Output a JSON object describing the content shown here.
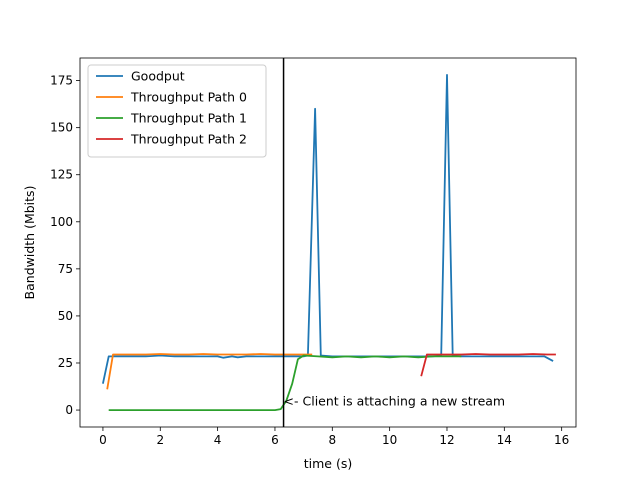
{
  "chart_data": {
    "type": "line",
    "title": "",
    "xlabel": "time (s)",
    "ylabel": "Bandwidth (Mbits)",
    "xlim": [
      -0.8,
      16.5
    ],
    "ylim": [
      -9,
      187
    ],
    "xticks": [
      0,
      2,
      4,
      6,
      8,
      10,
      12,
      14,
      16
    ],
    "yticks": [
      0,
      25,
      50,
      75,
      100,
      125,
      150,
      175
    ],
    "grid": false,
    "legend_position": "upper-left",
    "vline": {
      "x": 6.3
    },
    "annotation": {
      "text": "<- Client is attaching a new stream",
      "x": 6.3,
      "y": 4.5
    },
    "series": [
      {
        "name": "Goodput",
        "color": "#1f77b4",
        "x": [
          0,
          0.2,
          0.5,
          1.0,
          1.5,
          2.0,
          2.5,
          3.0,
          3.5,
          4.0,
          4.2,
          4.5,
          4.7,
          5.0,
          5.5,
          6.0,
          6.5,
          7.0,
          7.15,
          7.4,
          7.6,
          8.0,
          8.5,
          9.0,
          9.5,
          10.0,
          10.5,
          11.0,
          11.5,
          11.8,
          12.0,
          12.2,
          12.5,
          13.0,
          13.5,
          14.0,
          14.5,
          15.0,
          15.4,
          15.7
        ],
        "y": [
          14,
          28.5,
          28.5,
          28.5,
          28.5,
          29,
          28.5,
          28.5,
          28.5,
          28.5,
          27.8,
          28.5,
          28,
          28.5,
          28.5,
          28.5,
          28.5,
          28.5,
          29,
          160,
          29,
          28.5,
          28.5,
          28.5,
          28.5,
          28.5,
          28.5,
          28.5,
          28.5,
          29,
          178,
          29,
          28.5,
          28.5,
          28.5,
          28.5,
          28.5,
          28.5,
          28.5,
          26
        ]
      },
      {
        "name": "Throughput Path 0",
        "color": "#ff7f0e",
        "x": [
          0.15,
          0.35,
          1.0,
          1.5,
          2.0,
          2.5,
          3.0,
          3.5,
          4.0,
          4.5,
          5.0,
          5.5,
          6.0,
          6.5,
          7.0,
          7.3
        ],
        "y": [
          11,
          29.5,
          29.5,
          29.5,
          29.8,
          29.5,
          29.5,
          29.8,
          29.5,
          29.5,
          29.5,
          29.8,
          29.5,
          29.5,
          29.5,
          29.5
        ]
      },
      {
        "name": "Throughput Path 1",
        "color": "#2ca02c",
        "x": [
          0.2,
          1.0,
          2.0,
          3.0,
          4.0,
          5.0,
          6.0,
          6.2,
          6.4,
          6.6,
          6.8,
          7.0,
          7.5,
          8.0,
          8.5,
          9.0,
          9.5,
          10.0,
          10.5,
          11.0,
          11.5,
          12.0,
          12.5
        ],
        "y": [
          0,
          0,
          0,
          0,
          0,
          0,
          0,
          0.5,
          5,
          14,
          27,
          29,
          28.5,
          28,
          28.5,
          28,
          28.5,
          28,
          28.5,
          28,
          28.5,
          28.5,
          28.5
        ]
      },
      {
        "name": "Throughput Path 2",
        "color": "#d62728",
        "x": [
          11.1,
          11.3,
          11.6,
          12.0,
          12.5,
          13.0,
          13.5,
          14.0,
          14.5,
          15.0,
          15.5,
          15.8
        ],
        "y": [
          18,
          29.5,
          29.5,
          29.5,
          29.5,
          29.8,
          29.5,
          29.5,
          29.5,
          29.8,
          29.5,
          29.5
        ]
      }
    ]
  }
}
